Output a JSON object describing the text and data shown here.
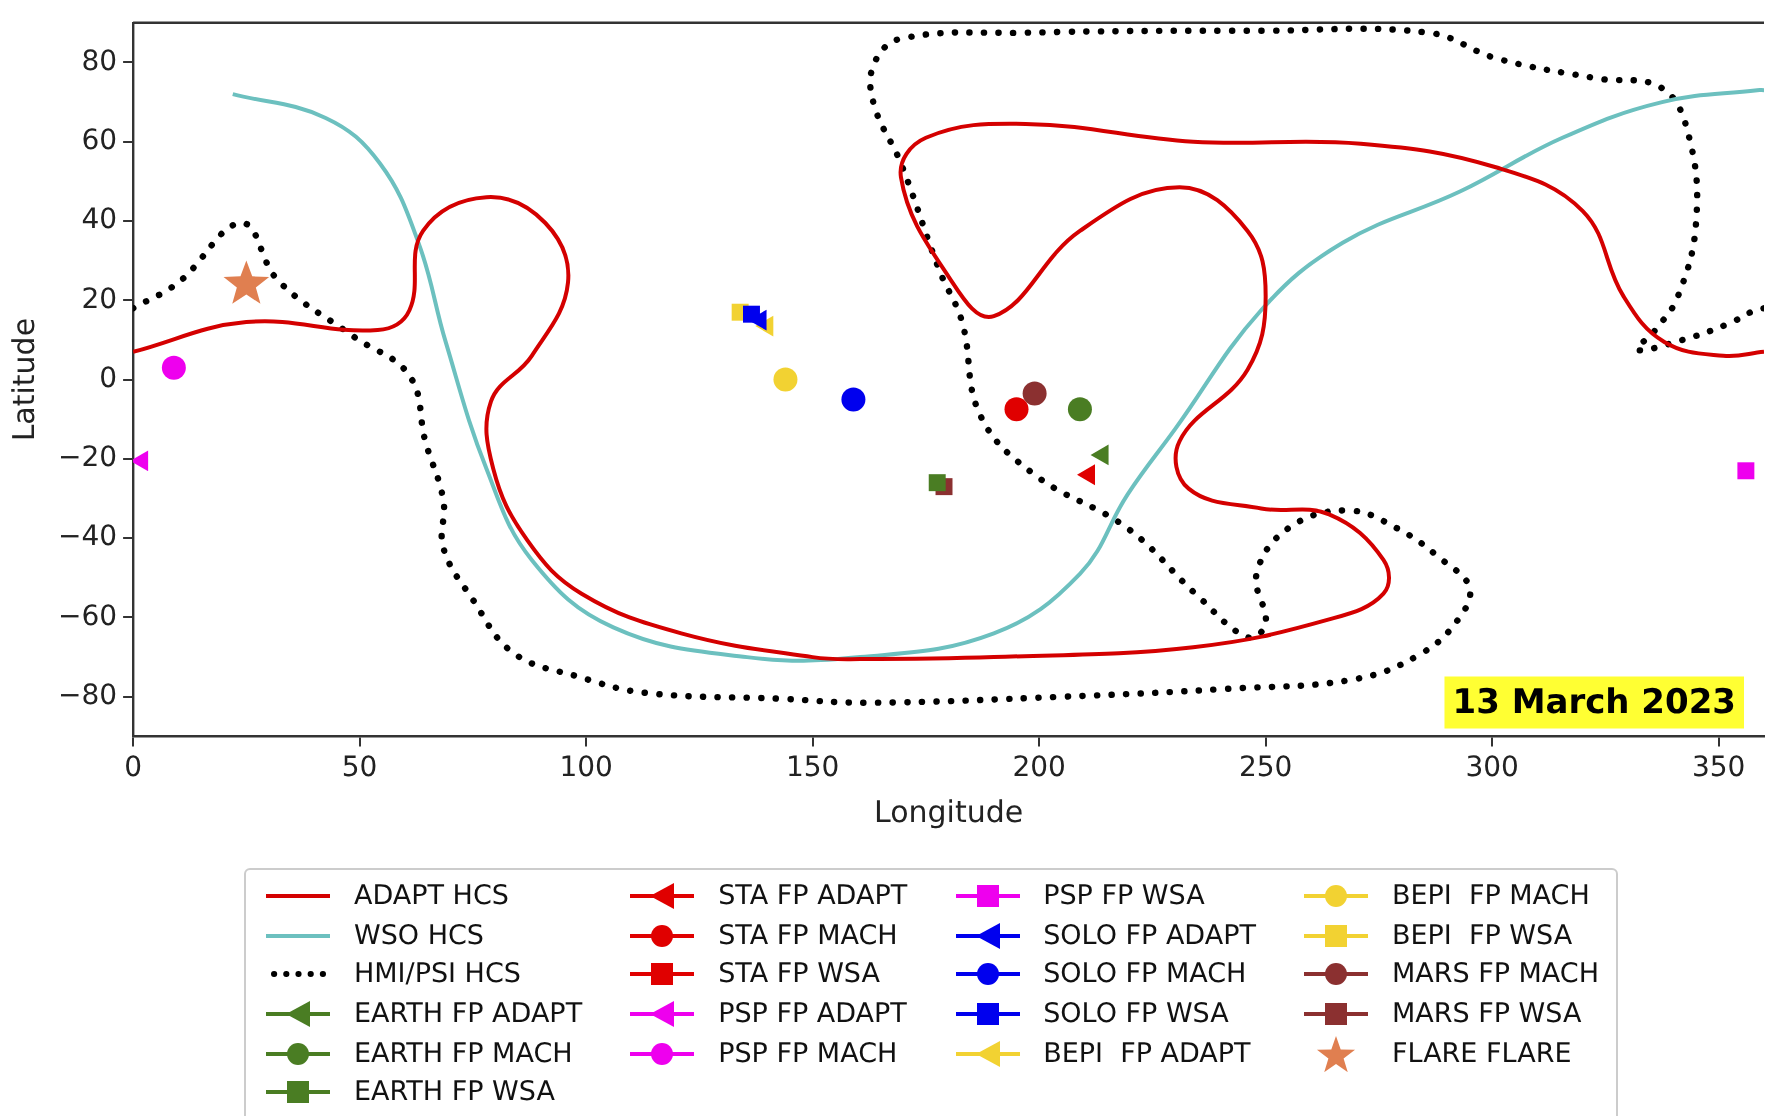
{
  "chart_data": {
    "type": "line",
    "xlabel": "Longitude",
    "ylabel": "Latitude",
    "xlim": [
      0,
      360
    ],
    "ylim": [
      -90,
      90
    ],
    "xticks": [
      0,
      50,
      100,
      150,
      200,
      250,
      300,
      350
    ],
    "yticks": [
      -80,
      -60,
      -40,
      -20,
      0,
      20,
      40,
      60,
      80
    ],
    "grid": false,
    "legend": "bottom",
    "annotations": [
      "13 March 2023"
    ],
    "series": [
      {
        "name": "ADAPT HCS",
        "color": "#d40000",
        "marker": "none",
        "line_style": "solid",
        "x": [
          0,
          25,
          54,
          61,
          64,
          78,
          91,
          96,
          88,
          79,
          79.5,
          87,
          99,
          121,
          150,
          160.5,
          190,
          234,
          264,
          276,
          276,
          264,
          249,
          233,
          231,
          246,
          250,
          246,
          231,
          209,
          190,
          180,
          169.5,
          175,
          197,
          234,
          271,
          301,
          320,
          329,
          338,
          351,
          360
        ],
        "values": [
          7,
          14.5,
          12.5,
          17.5,
          37.5,
          46,
          39.5,
          24.5,
          6,
          -5.5,
          -22.5,
          -40.5,
          -54,
          -64,
          -70,
          -70.5,
          -70,
          -67.5,
          -60.5,
          -54,
          -45.5,
          -34,
          -32.5,
          -27.5,
          -15.5,
          2.5,
          21,
          37.5,
          48.5,
          37.5,
          16,
          26,
          51,
          61,
          64.5,
          60,
          59.5,
          53.5,
          42.5,
          21,
          9.5,
          6,
          7
        ]
      },
      {
        "name": "WSO HCS",
        "color": "#6cc0bf",
        "marker": "none",
        "line_style": "solid",
        "x": [
          22,
          42.5,
          54.5,
          63,
          69,
          78,
          88,
          106,
          135.5,
          160.5,
          190,
          209,
          219.5,
          230,
          249,
          267,
          293,
          315.5,
          337.5,
          358.5,
          360
        ],
        "values": [
          72,
          66,
          54.5,
          34.5,
          9.5,
          -22.5,
          -45.5,
          -62.5,
          -70,
          -70,
          -64,
          -49,
          -29,
          -12.5,
          17.5,
          34.5,
          47.5,
          61,
          70,
          73,
          73
        ]
      },
      {
        "name": "HMI/PSI HCS",
        "color": "#000000",
        "marker": "none",
        "line_style": "dotted",
        "x": [
          0,
          10,
          24,
          32,
          48.5,
          61,
          64.5,
          68.5,
          68.5,
          75,
          84,
          98.5,
          113,
          143,
          162,
          205,
          241.5,
          270,
          284.5,
          292.5,
          295,
          289,
          279,
          268,
          255,
          248,
          250,
          246,
          234.5,
          219.5,
          199,
          187,
          183,
          178,
          169.5,
          163.5,
          163.5,
          169.5,
          197,
          249,
          286,
          301,
          323,
          337.5,
          343.5,
          345,
          341,
          336,
          332,
          342,
          352,
          358,
          360
        ],
        "values": [
          18,
          24.5,
          39.5,
          25,
          11,
          1,
          -15.5,
          -30.5,
          -42.5,
          -55.5,
          -69,
          -75,
          -79,
          -80.5,
          -81.5,
          -80,
          -78,
          -75.5,
          -69,
          -60.5,
          -52.5,
          -45.5,
          -37.5,
          -33,
          -37.5,
          -49,
          -61.5,
          -65,
          -54,
          -37.5,
          -24,
          -9,
          14.5,
          27.5,
          54.5,
          69.5,
          79.5,
          86,
          87.5,
          88,
          87.5,
          81,
          76,
          73.5,
          61,
          39.5,
          21,
          12.5,
          7.5,
          10,
          14,
          17.5,
          18
        ]
      },
      {
        "name": "EARTH FP ADAPT",
        "type": "scatter",
        "color": "#4a7d23",
        "marker": "triangle",
        "x": [
          214
        ],
        "values": [
          -19
        ]
      },
      {
        "name": "EARTH FP MACH",
        "type": "scatter",
        "color": "#4a7d23",
        "marker": "circle",
        "x": [
          209
        ],
        "values": [
          -7.5
        ]
      },
      {
        "name": "EARTH FP WSA",
        "type": "scatter",
        "color": "#4a7d23",
        "marker": "square",
        "x": [
          177.5
        ],
        "values": [
          -26
        ]
      },
      {
        "name": "STA FP ADAPT",
        "type": "scatter",
        "color": "#e00000",
        "marker": "triangle",
        "x": [
          211
        ],
        "values": [
          -24
        ]
      },
      {
        "name": "STA FP MACH",
        "type": "scatter",
        "color": "#e00000",
        "marker": "circle",
        "x": [
          195
        ],
        "values": [
          -7.5
        ]
      },
      {
        "name": "STA FP WSA",
        "type": "scatter",
        "color": "#e00000",
        "marker": "square",
        "x": [
          null
        ],
        "values": [
          null
        ]
      },
      {
        "name": "PSP FP ADAPT",
        "type": "scatter",
        "color": "#ee00ee",
        "marker": "triangle",
        "x": [
          2
        ],
        "values": [
          -20.5
        ]
      },
      {
        "name": "PSP FP MACH",
        "type": "scatter",
        "color": "#ee00ee",
        "marker": "circle",
        "x": [
          9
        ],
        "values": [
          3
        ]
      },
      {
        "name": "PSP FP WSA",
        "type": "scatter",
        "color": "#ee00ee",
        "marker": "square",
        "x": [
          356
        ],
        "values": [
          -23
        ]
      },
      {
        "name": "SOLO FP ADAPT",
        "type": "scatter",
        "color": "#0000ee",
        "marker": "triangle",
        "x": [
          138.5
        ],
        "values": [
          15
        ]
      },
      {
        "name": "SOLO FP MACH",
        "type": "scatter",
        "color": "#0000ee",
        "marker": "circle",
        "x": [
          159
        ],
        "values": [
          -5
        ]
      },
      {
        "name": "SOLO FP WSA",
        "type": "scatter",
        "color": "#0000ee",
        "marker": "square",
        "x": [
          136.5
        ],
        "values": [
          16.5
        ]
      },
      {
        "name": "BEPI  FP ADAPT",
        "type": "scatter",
        "color": "#f2d232",
        "marker": "triangle",
        "x": [
          140
        ],
        "values": [
          13.5
        ]
      },
      {
        "name": "BEPI  FP MACH",
        "type": "scatter",
        "color": "#f2d232",
        "marker": "circle",
        "x": [
          144
        ],
        "values": [
          0
        ]
      },
      {
        "name": "BEPI  FP WSA",
        "type": "scatter",
        "color": "#f2d232",
        "marker": "square",
        "x": [
          134
        ],
        "values": [
          17
        ]
      },
      {
        "name": "MARS FP MACH",
        "type": "scatter",
        "color": "#8b3030",
        "marker": "circle",
        "x": [
          199
        ],
        "values": [
          -3.5
        ]
      },
      {
        "name": "MARS FP WSA",
        "type": "scatter",
        "color": "#8b3030",
        "marker": "square",
        "x": [
          179
        ],
        "values": [
          -27
        ]
      },
      {
        "name": "FLARE FLARE",
        "type": "scatter",
        "color": "#e07f50",
        "marker": "star",
        "x": [
          25
        ],
        "values": [
          24
        ]
      }
    ]
  }
}
